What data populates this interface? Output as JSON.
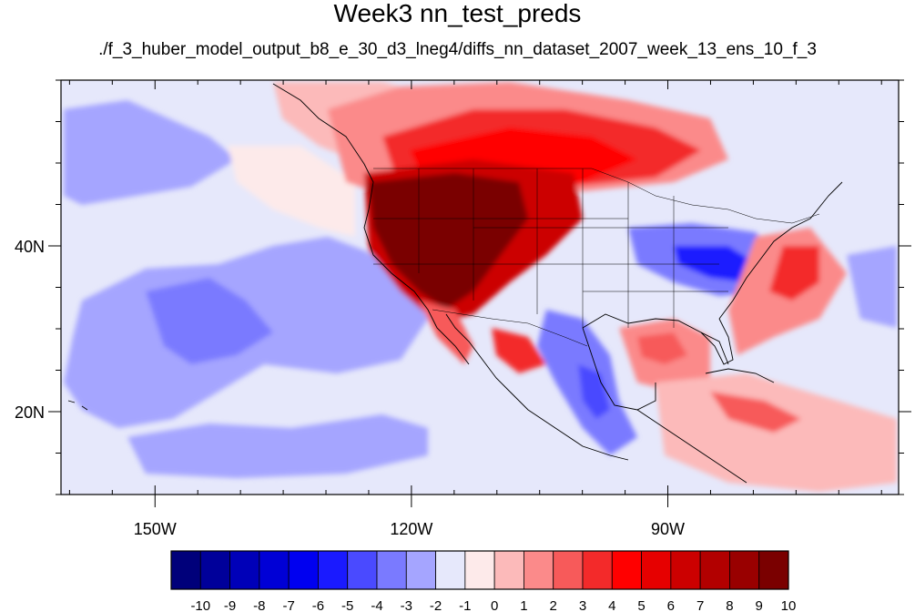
{
  "title": "Week3 nn_test_preds",
  "subtitle": "./f_3_huber_model_output_b8_e_30_d3_lneg4/diffs_nn_dataset_2007_week_13_ens_10_f_3",
  "map": {
    "lon_range": [
      -161,
      -63
    ],
    "lat_range": [
      10,
      60
    ],
    "lon_ticks": [
      {
        "value": -150,
        "label": "150W"
      },
      {
        "value": -120,
        "label": "120W"
      },
      {
        "value": -90,
        "label": "90W"
      }
    ],
    "lat_ticks": [
      {
        "value": 20,
        "label": "20N"
      },
      {
        "value": 40,
        "label": "40N"
      }
    ]
  },
  "colorbar": {
    "labels": [
      "-10",
      "-9",
      "-8",
      "-7",
      "-6",
      "-5",
      "-4",
      "-3",
      "-2",
      "-1",
      "0",
      "1",
      "2",
      "3",
      "4",
      "5",
      "6",
      "7",
      "8",
      "9",
      "10"
    ],
    "colors": [
      "#00007a",
      "#00009a",
      "#0000b8",
      "#0000d6",
      "#0000f0",
      "#1a1aff",
      "#4a4aff",
      "#7a7aff",
      "#a5a5ff",
      "#e6e8fb",
      "#fdeaea",
      "#fcbaba",
      "#fb8a8a",
      "#f75a5a",
      "#f32a2a",
      "#ff0000",
      "#e60000",
      "#cc0000",
      "#b20000",
      "#990000",
      "#7a0000"
    ]
  },
  "chart_data": {
    "type": "heatmap",
    "title": "Week3 nn_test_preds",
    "subtitle": "./f_3_huber_model_output_b8_e_30_d3_lneg4/diffs_nn_dataset_2007_week_13_ens_10_f_3",
    "x_ticks": [
      "150W",
      "120W",
      "90W"
    ],
    "y_ticks": [
      "20N",
      "40N"
    ],
    "colorbar_levels": [
      -10,
      -9,
      -8,
      -7,
      -6,
      -5,
      -4,
      -3,
      -2,
      -1,
      0,
      1,
      2,
      3,
      4,
      5,
      6,
      7,
      8,
      9,
      10
    ],
    "regions": [
      {
        "lon": -114,
        "lat": 42,
        "value": 10
      },
      {
        "lon": -110,
        "lat": 50,
        "value": 8
      },
      {
        "lon": -100,
        "lat": 55,
        "value": 5
      },
      {
        "lon": -122,
        "lat": 56,
        "value": 2
      },
      {
        "lon": -85,
        "lat": 39,
        "value": -4
      },
      {
        "lon": -73,
        "lat": 38,
        "value": 3
      },
      {
        "lon": -93,
        "lat": 28,
        "value": 3
      },
      {
        "lon": -97,
        "lat": 22,
        "value": -4
      },
      {
        "lon": -78,
        "lat": 20,
        "value": 2
      },
      {
        "lon": -140,
        "lat": 30,
        "value": -2
      },
      {
        "lon": -155,
        "lat": 45,
        "value": -2
      },
      {
        "lon": -133,
        "lat": 20,
        "value": -1
      }
    ]
  }
}
